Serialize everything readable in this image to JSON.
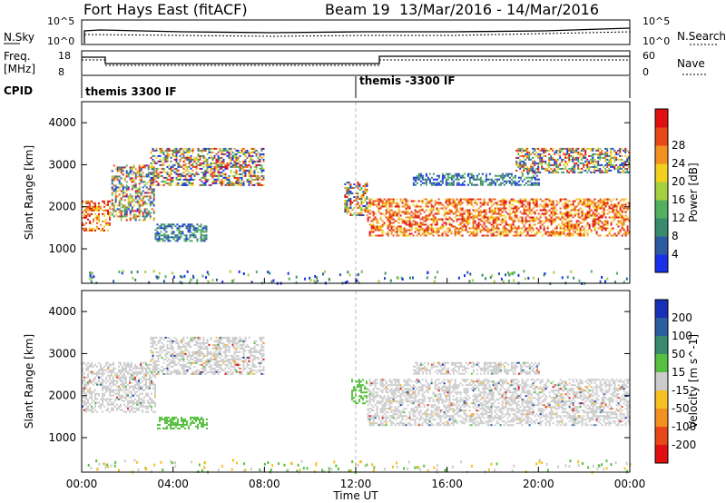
{
  "header": {
    "station": "Fort Hays East (fitACF)",
    "beam": "Beam 19",
    "dates": "13/Mar/2016 - 14/Mar/2016"
  },
  "strips": {
    "nsky": {
      "label": "N.Sky",
      "tick_top": "10^5",
      "tick_bottom": "10^0"
    },
    "nsearch": {
      "label": "N.Search",
      "tick_top": "10^5",
      "tick_bottom": "10^0"
    },
    "freq": {
      "label_line1": "Freq.",
      "label_line2": "[MHz]",
      "tick_top": "18",
      "tick_bottom": "8"
    },
    "nave": {
      "label": "Nave",
      "tick_top": "60",
      "tick_bottom": "0"
    },
    "cpid": {
      "label": "CPID",
      "modes": [
        {
          "start_h": 0,
          "text": "themis 3300 IF"
        },
        {
          "start_h": 12,
          "text": "themis -3300 IF"
        }
      ]
    }
  },
  "axes": {
    "ylabel": "Slant Range [km]",
    "xlabel": "Time UT",
    "yticks": [
      "1000",
      "2000",
      "3000",
      "4000"
    ],
    "xticks": [
      "00:00",
      "04:00",
      "08:00",
      "12:00",
      "16:00",
      "20:00",
      "00:00"
    ]
  },
  "colorbars": {
    "power": {
      "label": "Power [dB]",
      "ticks": [
        "4",
        "8",
        "12",
        "16",
        "20",
        "24",
        "28"
      ],
      "colors": [
        "#1830e8",
        "#2d5aa0",
        "#3a8a6e",
        "#52b060",
        "#a6d040",
        "#f2d020",
        "#f29020",
        "#e84818",
        "#e01010"
      ]
    },
    "velocity": {
      "label": "Velocity [m s^-1]",
      "ticks": [
        "200",
        "100",
        "50",
        "15",
        "-15",
        "-50",
        "-100",
        "-200"
      ],
      "colors": [
        "#1830b8",
        "#2a5fa0",
        "#3a8a6e",
        "#58c040",
        "#cccccc",
        "#f5c020",
        "#f29020",
        "#e84818",
        "#e01010"
      ]
    }
  },
  "chart_data": [
    {
      "type": "heatmap",
      "name_ref": "power",
      "x_range_hours": [
        0,
        24
      ],
      "y_range_km": [
        180,
        4500
      ],
      "regions": [
        {
          "t": [
            0.0,
            1.2
          ],
          "r": [
            1450,
            2150
          ],
          "level": "high"
        },
        {
          "t": [
            1.3,
            3.2
          ],
          "r": [
            1700,
            3000
          ],
          "level": "mixed"
        },
        {
          "t": [
            3.0,
            8.0
          ],
          "r": [
            2500,
            3400
          ],
          "level": "mixed"
        },
        {
          "t": [
            3.2,
            5.5
          ],
          "r": [
            1200,
            1600
          ],
          "level": "low"
        },
        {
          "t": [
            11.5,
            12.5
          ],
          "r": [
            1800,
            2600
          ],
          "level": "mixed"
        },
        {
          "t": [
            12.5,
            24.0
          ],
          "r": [
            1300,
            2200
          ],
          "level": "high"
        },
        {
          "t": [
            14.5,
            20.0
          ],
          "r": [
            2500,
            2800
          ],
          "level": "low"
        },
        {
          "t": [
            19.0,
            24.0
          ],
          "r": [
            2800,
            3400
          ],
          "level": "mixed"
        }
      ]
    },
    {
      "type": "heatmap",
      "name_ref": "velocity",
      "x_range_hours": [
        0,
        24
      ],
      "y_range_km": [
        180,
        4500
      ],
      "regions": [
        {
          "t": [
            0.0,
            3.2
          ],
          "r": [
            1600,
            2800
          ],
          "v": "ground"
        },
        {
          "t": [
            3.0,
            8.0
          ],
          "r": [
            2500,
            3400
          ],
          "v": "ground"
        },
        {
          "t": [
            3.3,
            5.5
          ],
          "r": [
            1200,
            1500
          ],
          "v": "positive"
        },
        {
          "t": [
            11.8,
            12.5
          ],
          "r": [
            1800,
            2400
          ],
          "v": "positive"
        },
        {
          "t": [
            12.5,
            24.0
          ],
          "r": [
            1300,
            2400
          ],
          "v": "ground"
        },
        {
          "t": [
            14.5,
            20.0
          ],
          "r": [
            2500,
            2800
          ],
          "v": "ground"
        }
      ]
    }
  ]
}
